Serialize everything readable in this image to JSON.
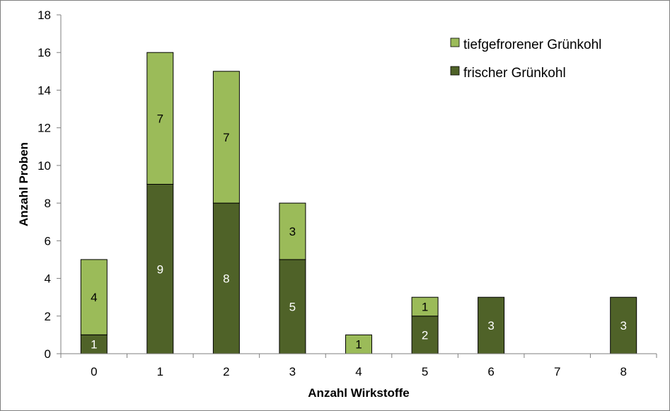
{
  "chart_data": {
    "type": "bar",
    "stacked": true,
    "categories": [
      "0",
      "1",
      "2",
      "3",
      "4",
      "5",
      "6",
      "7",
      "8"
    ],
    "series": [
      {
        "name": "frischer Grünkohl",
        "values": [
          1,
          9,
          8,
          5,
          0,
          2,
          3,
          0,
          3
        ],
        "color": "#4f6228",
        "labels": [
          "1",
          "9",
          "8",
          "5",
          "",
          "2",
          "3",
          "",
          "3"
        ]
      },
      {
        "name": "tiefgefrorener Grünkohl",
        "values": [
          4,
          7,
          7,
          3,
          1,
          1,
          0,
          0,
          0
        ],
        "color": "#9bbb59",
        "labels": [
          "4",
          "7",
          "7",
          "3",
          "1",
          "1",
          "",
          "",
          ""
        ]
      }
    ],
    "xlabel": "Anzahl Wirkstoffe",
    "ylabel": "Anzahl Proben",
    "ylim": [
      0,
      18
    ],
    "yticks": [
      "0",
      "2",
      "4",
      "6",
      "8",
      "10",
      "12",
      "14",
      "16",
      "18"
    ],
    "grid": false,
    "legend_position": "top-right"
  }
}
